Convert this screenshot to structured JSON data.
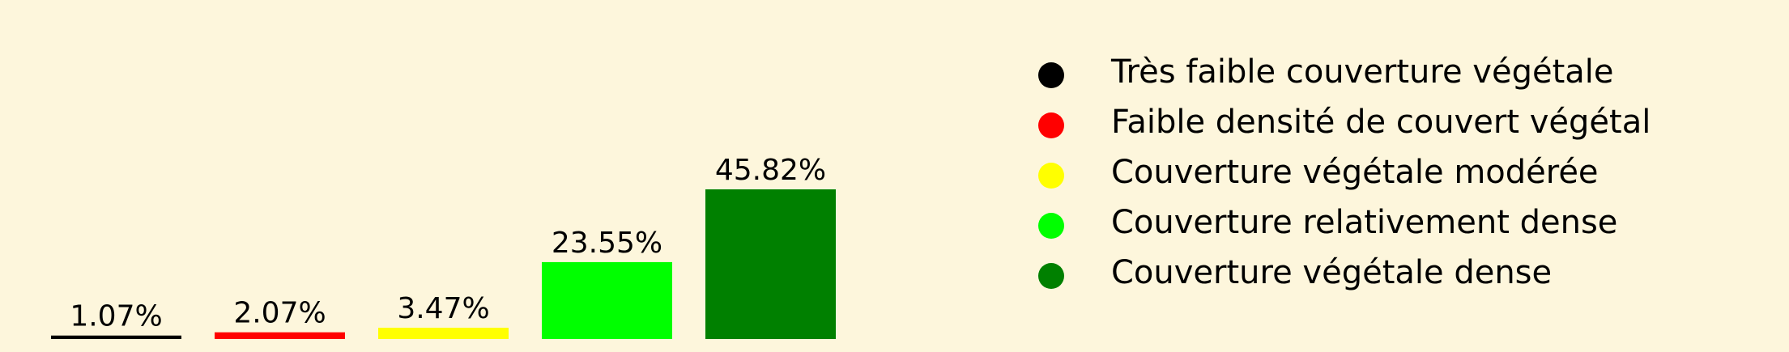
{
  "chart_data": {
    "type": "bar",
    "categories": [
      "Très faible couverture végétale",
      "Faible densité de couvert végétal",
      "Couverture végétale modérée",
      "Couverture relativement dense",
      "Couverture végétale dense"
    ],
    "values": [
      1.07,
      2.07,
      3.47,
      23.55,
      45.82
    ],
    "value_labels": [
      "1.07%",
      "2.07%",
      "3.47%",
      "23.55%",
      "45.82%"
    ],
    "colors": [
      "#000000",
      "#ff0000",
      "#ffff00",
      "#00ff00",
      "#008000"
    ],
    "ylim": [
      0,
      45.82
    ],
    "grid": false,
    "legend_position": "right",
    "background": "#fdf6dc"
  }
}
